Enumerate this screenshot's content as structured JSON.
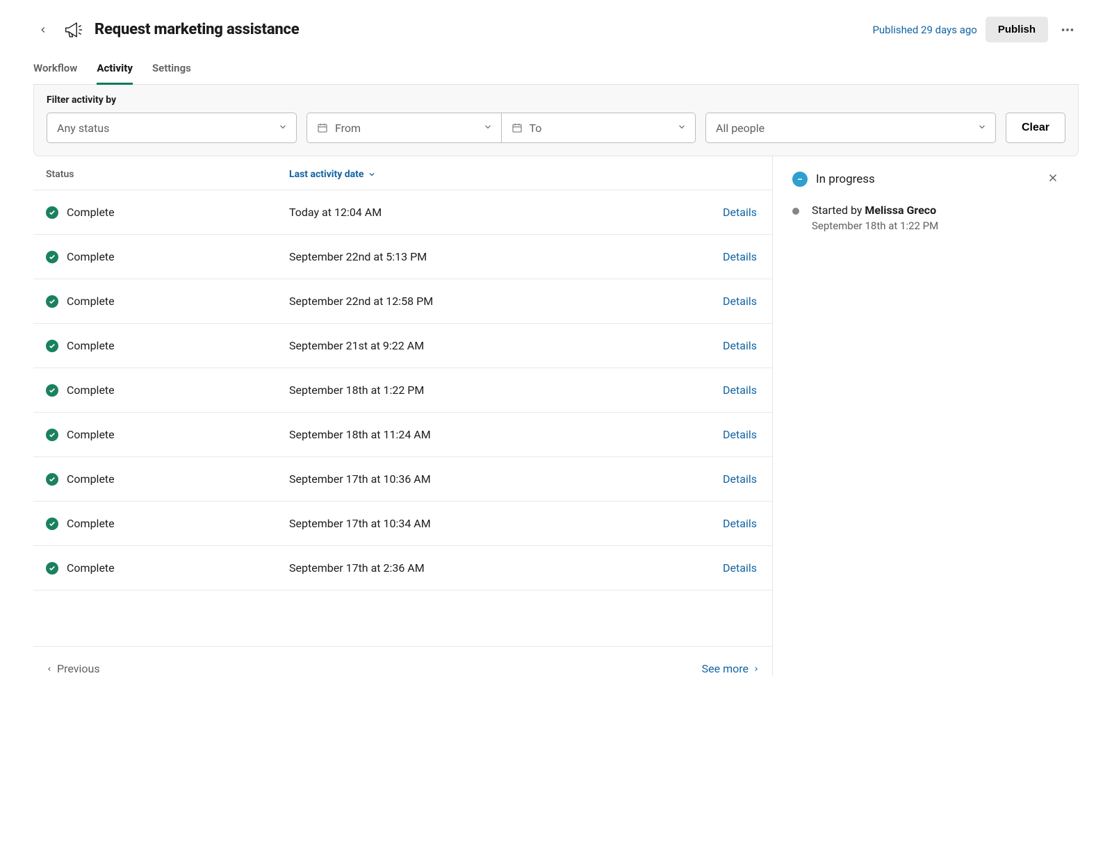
{
  "header": {
    "title": "Request marketing assistance",
    "published_text": "Published 29 days ago",
    "publish_button": "Publish"
  },
  "tabs": [
    {
      "id": "workflow",
      "label": "Workflow",
      "active": false
    },
    {
      "id": "activity",
      "label": "Activity",
      "active": true
    },
    {
      "id": "settings",
      "label": "Settings",
      "active": false
    }
  ],
  "filter": {
    "label": "Filter activity by",
    "status_placeholder": "Any status",
    "from_placeholder": "From",
    "to_placeholder": "To",
    "people_placeholder": "All people",
    "clear_button": "Clear"
  },
  "columns": {
    "status": "Status",
    "date": "Last activity date"
  },
  "rows": [
    {
      "status": "Complete",
      "date": "Today at 12:04 AM",
      "details": "Details"
    },
    {
      "status": "Complete",
      "date": "September 22nd at 5:13 PM",
      "details": "Details"
    },
    {
      "status": "Complete",
      "date": "September 22nd at 12:58 PM",
      "details": "Details"
    },
    {
      "status": "Complete",
      "date": "September 21st at 9:22 AM",
      "details": "Details"
    },
    {
      "status": "Complete",
      "date": "September 18th at 1:22 PM",
      "details": "Details"
    },
    {
      "status": "Complete",
      "date": "September 18th at 11:24 AM",
      "details": "Details"
    },
    {
      "status": "Complete",
      "date": "September 17th at 10:36 AM",
      "details": "Details"
    },
    {
      "status": "Complete",
      "date": "September 17th at 10:34 AM",
      "details": "Details"
    },
    {
      "status": "Complete",
      "date": "September 17th at 2:36 AM",
      "details": "Details"
    }
  ],
  "pagination": {
    "previous": "Previous",
    "see_more": "See more"
  },
  "panel": {
    "status_label": "In progress",
    "started_by_prefix": "Started by ",
    "started_by_name": "Melissa Greco",
    "started_at": "September 18th at 1:22 PM"
  },
  "colors": {
    "accent_link": "#1264a3",
    "success": "#1a8160",
    "progress": "#2f9fd0"
  }
}
